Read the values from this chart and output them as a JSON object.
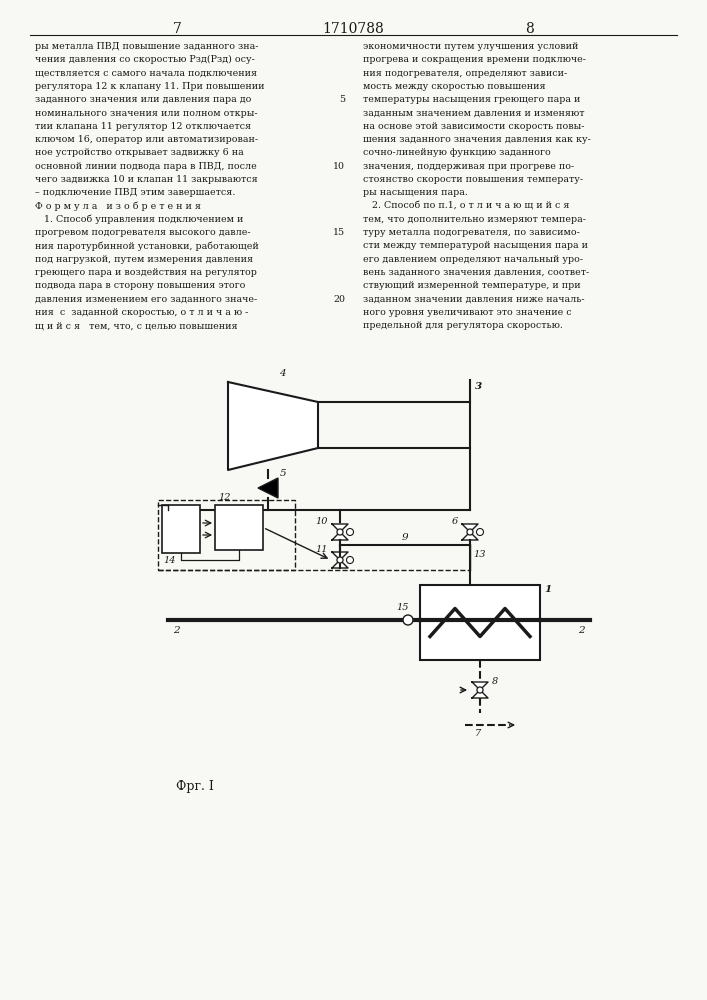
{
  "page_title": "1710788",
  "page_left": "7",
  "page_right": "8",
  "fig_label": "Фрг. I",
  "bg_color": "#f8f8f4",
  "line_color": "#1a1a1a",
  "text_color": "#1a1a1a",
  "text_left": [
    "ры металла ПВД повышение заданного зна-",
    "чения давления со скоростью Рзд(Рзд) осу-",
    "ществляется с самого начала подключения",
    "регулятора 12 к клапану 11. При повышении",
    "заданного значения или давления пара до",
    "номинального значения или полном откры-",
    "тии клапана 11 регулятор 12 отключается",
    "ключом 16, оператор или автоматизирован-",
    "ное устройство открывает задвижку 6 на",
    "основной линии подвода пара в ПВД, после",
    "чего задвижка 10 и клапан 11 закрываются",
    "– подключение ПВД этим завершается.",
    "Ф о р м у л а   и з о б р е т е н и я",
    "   1. Способ управления подключением и",
    "прогревом подогревателя высокого давле-",
    "ния паротурбинной установки, работающей",
    "под нагрузкой, путем измерения давления",
    "греющего пара и воздействия на регулятор",
    "подвода пара в сторону повышения этого",
    "давления изменением его заданного значе-",
    "ния  с  заданной скоростью, о т л и ч а ю -",
    "щ и й с я   тем, что, с целью повышения"
  ],
  "text_right": [
    "экономичности путем улучшения условий",
    "прогрева и сокращения времени подключе-",
    "ния подогревателя, определяют зависи-",
    "мость между скоростью повышения",
    "температуры насыщения греющего пара и",
    "заданным значением давления и изменяют",
    "на основе этой зависимости скорость повы-",
    "шения заданного значения давления как ку-",
    "сочно-линейную функцию заданного",
    "значения, поддерживая при прогреве по-",
    "стоянство скорости повышения температу-",
    "ры насыщения пара.",
    "   2. Способ по п.1, о т л и ч а ю щ и й с я",
    "тем, что дополнительно измеряют темпера-",
    "туру металла подогревателя, по зависимо-",
    "сти между температурой насыщения пара и",
    "его давлением определяют начальный уро-",
    "вень заданного значения давления, соответ-",
    "ствующий измеренной температуре, и при",
    "заданном значении давления ниже началь-",
    "ного уровня увеличивают это значение с",
    "предельной для регулятора скоростью."
  ]
}
